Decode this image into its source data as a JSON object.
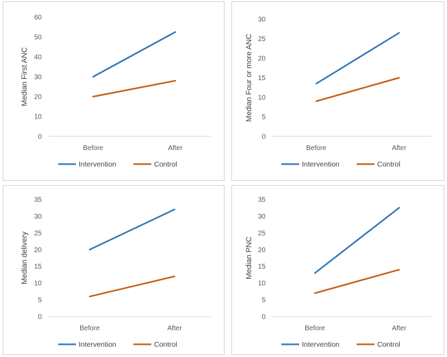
{
  "chart_data": [
    {
      "type": "line",
      "ylabel": "Median First ANC",
      "categories": [
        "Before",
        "After"
      ],
      "ylim": [
        0,
        60
      ],
      "yticks": [
        0,
        10,
        20,
        30,
        40,
        50,
        60
      ],
      "series": [
        {
          "name": "Intervention",
          "values": [
            30,
            52.5
          ],
          "color": "#2e75b6"
        },
        {
          "name": "Control",
          "values": [
            20,
            28
          ],
          "color": "#c55a11"
        }
      ],
      "legend": "bottom",
      "grid": false
    },
    {
      "type": "line",
      "ylabel": "Median Four or more ANC",
      "categories": [
        "Before",
        "After"
      ],
      "ylim": [
        0,
        30
      ],
      "yticks": [
        0,
        5,
        10,
        15,
        20,
        25,
        30
      ],
      "series": [
        {
          "name": "Intervention",
          "values": [
            13.5,
            26.5
          ],
          "color": "#2e75b6"
        },
        {
          "name": "Control",
          "values": [
            9,
            15
          ],
          "color": "#c55a11"
        }
      ],
      "legend": "bottom",
      "grid": false
    },
    {
      "type": "line",
      "ylabel": "Median delivery",
      "categories": [
        "Before",
        "After"
      ],
      "ylim": [
        0,
        35
      ],
      "yticks": [
        0,
        5,
        10,
        15,
        20,
        25,
        30,
        35
      ],
      "series": [
        {
          "name": "Intervention",
          "values": [
            20,
            32
          ],
          "color": "#2e75b6"
        },
        {
          "name": "Control",
          "values": [
            6,
            12
          ],
          "color": "#c55a11"
        }
      ],
      "legend": "bottom",
      "grid": false
    },
    {
      "type": "line",
      "ylabel": "Median PNC",
      "categories": [
        "Before",
        "After"
      ],
      "ylim": [
        0,
        35
      ],
      "yticks": [
        0,
        5,
        10,
        15,
        20,
        25,
        30,
        35
      ],
      "series": [
        {
          "name": "Intervention",
          "values": [
            13,
            32.5
          ],
          "color": "#2e75b6"
        },
        {
          "name": "Control",
          "values": [
            7,
            14
          ],
          "color": "#c55a11"
        }
      ],
      "legend": "bottom",
      "grid": false
    }
  ]
}
